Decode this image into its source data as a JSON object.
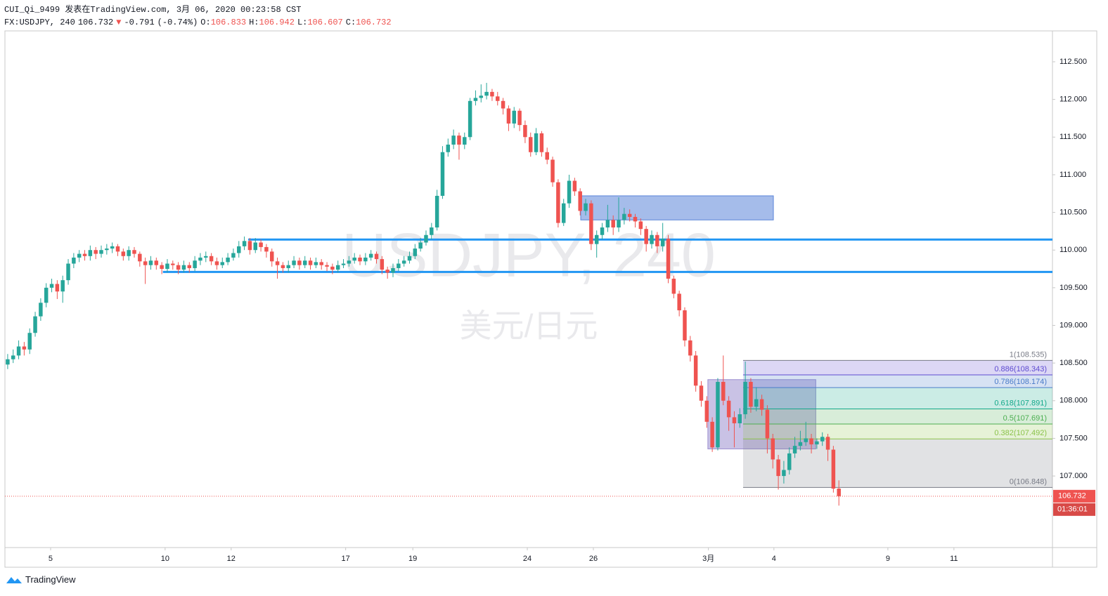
{
  "header": {
    "author_line": "CUI_Qi_9499 发表在TradingView.com, 3月 06, 2020 00:23:58 CST"
  },
  "chart_data": {
    "type": "candlestick",
    "symbol": "FX:USDJPY, 240",
    "direction": "▼",
    "change": -0.791,
    "change_pct": "(-0.74%)",
    "ohlc_labels": [
      "O:",
      "H:",
      "L:",
      "C:"
    ],
    "watermark": "USDJPY, 240",
    "watermark_sub": "美元/日元",
    "up_color": "#26a69a",
    "down_color": "#ef5350",
    "xlim": [
      0,
      190.3
    ],
    "xticks": [
      {
        "value": 8.3,
        "label": "5"
      },
      {
        "value": 29.1,
        "label": "10"
      },
      {
        "value": 41.1,
        "label": "12"
      },
      {
        "value": 61.9,
        "label": "17"
      },
      {
        "value": 74.1,
        "label": "19"
      },
      {
        "value": 94.9,
        "label": "24"
      },
      {
        "value": 106.9,
        "label": "26"
      },
      {
        "value": 127.8,
        "label": "3月"
      },
      {
        "value": 139.7,
        "label": "4"
      },
      {
        "value": 160.4,
        "label": "9"
      },
      {
        "value": 172.4,
        "label": "11"
      }
    ],
    "ylim": [
      106.05,
      112.91
    ],
    "yticks": [
      {
        "value": 107,
        "label": "107.000"
      },
      {
        "value": 107.5,
        "label": "107.500"
      },
      {
        "value": 108,
        "label": "108.000"
      },
      {
        "value": 108.5,
        "label": "108.500"
      },
      {
        "value": 109,
        "label": "109.000"
      },
      {
        "value": 109.5,
        "label": "109.500"
      },
      {
        "value": 110,
        "label": "110.000"
      },
      {
        "value": 110.5,
        "label": "110.500"
      },
      {
        "value": 111,
        "label": "111.000"
      },
      {
        "value": 111.5,
        "label": "111.500"
      },
      {
        "value": 112,
        "label": "112.000"
      },
      {
        "value": 112.5,
        "label": "112.500"
      }
    ],
    "hlines": [
      {
        "y": 110.14,
        "x_start": 44.2,
        "color": "#2196f3"
      },
      {
        "y": 109.71,
        "x_start": 28.7,
        "color": "#2196f3"
      }
    ],
    "boxes": [
      {
        "x": [
          104.6,
          139.6
        ],
        "y": [
          110.4,
          110.72
        ],
        "color": "#5b85d9"
      },
      {
        "x": [
          127.7,
          147.3
        ],
        "y": [
          107.36,
          108.28
        ],
        "color": "#9c8fd0"
      }
    ],
    "fib": {
      "x_start": 134.1,
      "levels": [
        {
          "value": 108.535,
          "label": "1(108.535)",
          "color": "#787b86"
        },
        {
          "value": 108.343,
          "label": "0.886(108.343)",
          "color": "#5e4bd1"
        },
        {
          "value": 108.174,
          "label": "0.786(108.174)",
          "color": "#4a7bc9"
        },
        {
          "value": 107.891,
          "label": "0.618(107.891)",
          "color": "#13a88a"
        },
        {
          "value": 107.691,
          "label": "0.5(107.691)",
          "color": "#4caf50"
        },
        {
          "value": 107.492,
          "label": "0.382(107.492)",
          "color": "#8bc34a"
        },
        {
          "value": 106.848,
          "label": "0(106.848)",
          "color": "#787b86"
        }
      ]
    },
    "countdown": "01:36:01",
    "candles": [
      [
        108.48,
        108.62,
        108.42,
        108.55
      ],
      [
        108.55,
        108.68,
        108.5,
        108.6
      ],
      [
        108.6,
        108.8,
        108.55,
        108.72
      ],
      [
        108.72,
        108.78,
        108.6,
        108.68
      ],
      [
        108.68,
        108.96,
        108.62,
        108.9
      ],
      [
        108.9,
        109.18,
        108.85,
        109.12
      ],
      [
        109.12,
        109.36,
        109.06,
        109.3
      ],
      [
        109.3,
        109.56,
        109.24,
        109.5
      ],
      [
        109.5,
        109.62,
        109.44,
        109.55
      ],
      [
        109.55,
        109.6,
        109.35,
        109.45
      ],
      [
        109.45,
        109.66,
        109.3,
        109.6
      ],
      [
        109.6,
        109.88,
        109.54,
        109.82
      ],
      [
        109.82,
        109.96,
        109.76,
        109.9
      ],
      [
        109.9,
        110.0,
        109.84,
        109.95
      ],
      [
        109.95,
        110.0,
        109.86,
        109.92
      ],
      [
        109.92,
        110.06,
        109.86,
        110.0
      ],
      [
        110.0,
        110.04,
        109.88,
        109.95
      ],
      [
        109.95,
        110.06,
        109.9,
        110.0
      ],
      [
        110.0,
        110.08,
        109.94,
        110.02
      ],
      [
        110.02,
        110.1,
        109.96,
        110.05
      ],
      [
        110.05,
        110.08,
        109.92,
        109.98
      ],
      [
        109.98,
        110.02,
        109.86,
        109.92
      ],
      [
        109.92,
        110.05,
        109.86,
        110.0
      ],
      [
        110.0,
        110.04,
        109.9,
        109.95
      ],
      [
        109.95,
        109.98,
        109.78,
        109.85
      ],
      [
        109.85,
        109.9,
        109.55,
        109.8
      ],
      [
        109.8,
        109.92,
        109.74,
        109.86
      ],
      [
        109.86,
        109.9,
        109.74,
        109.8
      ],
      [
        109.8,
        109.84,
        109.68,
        109.75
      ],
      [
        109.75,
        109.88,
        109.7,
        109.82
      ],
      [
        109.82,
        109.86,
        109.74,
        109.8
      ],
      [
        109.8,
        109.84,
        109.68,
        109.74
      ],
      [
        109.74,
        109.86,
        109.7,
        109.8
      ],
      [
        109.8,
        109.84,
        109.7,
        109.76
      ],
      [
        109.76,
        109.92,
        109.72,
        109.86
      ],
      [
        109.86,
        109.96,
        109.8,
        109.9
      ],
      [
        109.9,
        109.98,
        109.84,
        109.92
      ],
      [
        109.92,
        109.96,
        109.8,
        109.85
      ],
      [
        109.85,
        109.9,
        109.74,
        109.8
      ],
      [
        109.8,
        109.9,
        109.76,
        109.84
      ],
      [
        109.84,
        109.96,
        109.8,
        109.9
      ],
      [
        109.9,
        110.02,
        109.86,
        109.96
      ],
      [
        109.96,
        110.12,
        109.9,
        110.05
      ],
      [
        110.05,
        110.18,
        110.0,
        110.12
      ],
      [
        110.12,
        110.16,
        109.94,
        110.0
      ],
      [
        110.0,
        110.16,
        109.96,
        110.1
      ],
      [
        110.1,
        110.14,
        109.98,
        110.04
      ],
      [
        110.04,
        110.08,
        109.9,
        109.98
      ],
      [
        109.98,
        110.02,
        109.78,
        109.85
      ],
      [
        109.85,
        109.9,
        109.62,
        109.8
      ],
      [
        109.8,
        109.84,
        109.7,
        109.76
      ],
      [
        109.76,
        109.86,
        109.7,
        109.8
      ],
      [
        109.8,
        109.92,
        109.76,
        109.86
      ],
      [
        109.86,
        109.9,
        109.74,
        109.8
      ],
      [
        109.8,
        109.92,
        109.76,
        109.86
      ],
      [
        109.86,
        109.9,
        109.74,
        109.8
      ],
      [
        109.8,
        109.9,
        109.76,
        109.84
      ],
      [
        109.84,
        109.88,
        109.74,
        109.8
      ],
      [
        109.8,
        109.84,
        109.72,
        109.78
      ],
      [
        109.78,
        109.82,
        109.68,
        109.74
      ],
      [
        109.74,
        109.86,
        109.7,
        109.8
      ],
      [
        109.8,
        109.88,
        109.76,
        109.82
      ],
      [
        109.82,
        109.92,
        109.78,
        109.86
      ],
      [
        109.86,
        109.96,
        109.82,
        109.9
      ],
      [
        109.9,
        109.94,
        109.8,
        109.85
      ],
      [
        109.85,
        109.96,
        109.8,
        109.9
      ],
      [
        109.9,
        110.0,
        109.86,
        109.95
      ],
      [
        109.95,
        109.98,
        109.82,
        109.88
      ],
      [
        109.88,
        109.92,
        109.68,
        109.74
      ],
      [
        109.74,
        109.78,
        109.62,
        109.7
      ],
      [
        109.7,
        109.82,
        109.64,
        109.76
      ],
      [
        109.76,
        109.88,
        109.72,
        109.82
      ],
      [
        109.82,
        109.92,
        109.78,
        109.86
      ],
      [
        109.86,
        109.98,
        109.82,
        109.92
      ],
      [
        109.92,
        110.08,
        109.88,
        110.02
      ],
      [
        110.02,
        110.16,
        109.98,
        110.1
      ],
      [
        110.1,
        110.26,
        110.06,
        110.2
      ],
      [
        110.2,
        110.36,
        110.14,
        110.3
      ],
      [
        110.3,
        110.8,
        110.26,
        110.72
      ],
      [
        110.72,
        111.38,
        110.68,
        111.3
      ],
      [
        111.3,
        111.48,
        111.24,
        111.4
      ],
      [
        111.4,
        111.6,
        111.34,
        111.52
      ],
      [
        111.52,
        111.56,
        111.2,
        111.4
      ],
      [
        111.4,
        111.56,
        111.34,
        111.5
      ],
      [
        111.5,
        112.02,
        111.46,
        111.98
      ],
      [
        111.98,
        112.12,
        111.92,
        112.02
      ],
      [
        112.02,
        112.2,
        111.96,
        112.05
      ],
      [
        112.05,
        112.22,
        112.0,
        112.1
      ],
      [
        112.1,
        112.14,
        111.98,
        112.04
      ],
      [
        112.04,
        112.1,
        111.92,
        111.98
      ],
      [
        111.98,
        112.02,
        111.8,
        111.88
      ],
      [
        111.88,
        111.92,
        111.58,
        111.68
      ],
      [
        111.68,
        111.9,
        111.62,
        111.85
      ],
      [
        111.85,
        111.88,
        111.58,
        111.66
      ],
      [
        111.66,
        111.72,
        111.42,
        111.5
      ],
      [
        111.5,
        111.56,
        111.24,
        111.3
      ],
      [
        111.3,
        111.62,
        111.26,
        111.55
      ],
      [
        111.55,
        111.58,
        111.24,
        111.3
      ],
      [
        111.3,
        111.36,
        111.14,
        111.2
      ],
      [
        111.2,
        111.24,
        110.84,
        110.9
      ],
      [
        110.9,
        110.94,
        110.3,
        110.36
      ],
      [
        110.36,
        110.68,
        110.32,
        110.62
      ],
      [
        110.62,
        111.0,
        110.56,
        110.92
      ],
      [
        110.92,
        110.96,
        110.72,
        110.78
      ],
      [
        110.78,
        110.82,
        110.46,
        110.52
      ],
      [
        110.52,
        110.68,
        110.46,
        110.62
      ],
      [
        110.62,
        110.66,
        110.0,
        110.08
      ],
      [
        110.08,
        110.26,
        109.9,
        110.2
      ],
      [
        110.2,
        110.36,
        110.14,
        110.3
      ],
      [
        110.3,
        110.6,
        110.24,
        110.4
      ],
      [
        110.4,
        110.46,
        110.2,
        110.3
      ],
      [
        110.3,
        110.7,
        110.24,
        110.4
      ],
      [
        110.4,
        110.56,
        110.34,
        110.48
      ],
      [
        110.48,
        110.54,
        110.38,
        110.44
      ],
      [
        110.44,
        110.48,
        110.3,
        110.38
      ],
      [
        110.38,
        110.42,
        110.2,
        110.28
      ],
      [
        110.28,
        110.32,
        109.98,
        110.08
      ],
      [
        110.08,
        110.26,
        110.02,
        110.2
      ],
      [
        110.2,
        110.24,
        109.96,
        110.05
      ],
      [
        110.05,
        110.36,
        109.98,
        110.15
      ],
      [
        110.15,
        110.2,
        109.56,
        109.62
      ],
      [
        109.62,
        109.66,
        109.36,
        109.42
      ],
      [
        109.42,
        109.46,
        109.12,
        109.2
      ],
      [
        109.2,
        109.24,
        108.72,
        108.8
      ],
      [
        108.8,
        108.86,
        108.52,
        108.6
      ],
      [
        108.6,
        108.66,
        108.12,
        108.2
      ],
      [
        108.2,
        108.26,
        107.92,
        108.0
      ],
      [
        108.0,
        108.06,
        107.64,
        107.72
      ],
      [
        107.72,
        107.78,
        107.32,
        107.38
      ],
      [
        107.38,
        108.3,
        107.34,
        108.25
      ],
      [
        108.25,
        108.6,
        107.94,
        108.0
      ],
      [
        108.0,
        108.06,
        107.6,
        107.78
      ],
      [
        107.78,
        107.86,
        107.38,
        107.7
      ],
      [
        107.7,
        107.9,
        107.64,
        107.82
      ],
      [
        107.82,
        108.52,
        107.76,
        108.25
      ],
      [
        108.25,
        108.3,
        107.84,
        107.92
      ],
      [
        107.92,
        108.18,
        107.86,
        108.02
      ],
      [
        108.02,
        108.08,
        107.8,
        107.88
      ],
      [
        107.88,
        107.94,
        107.3,
        107.5
      ],
      [
        107.5,
        107.56,
        107.1,
        107.22
      ],
      [
        107.22,
        107.28,
        106.82,
        107.0
      ],
      [
        107.0,
        107.2,
        106.9,
        107.08
      ],
      [
        107.08,
        107.38,
        107.02,
        107.3
      ],
      [
        107.3,
        107.52,
        107.24,
        107.4
      ],
      [
        107.4,
        107.6,
        107.34,
        107.45
      ],
      [
        107.45,
        107.72,
        107.4,
        107.5
      ],
      [
        107.5,
        107.56,
        107.3,
        107.42
      ],
      [
        107.42,
        107.5,
        107.36,
        107.46
      ],
      [
        107.46,
        107.58,
        107.4,
        107.52
      ],
      [
        107.52,
        107.56,
        107.2,
        107.35
      ],
      [
        107.35,
        107.4,
        106.78,
        106.833
      ],
      [
        106.833,
        106.942,
        106.607,
        106.732
      ]
    ]
  },
  "footer": {
    "brand": "TradingView"
  }
}
